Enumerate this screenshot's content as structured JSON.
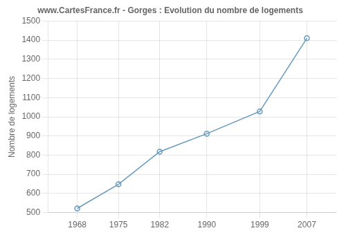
{
  "chart_data": {
    "type": "line",
    "title": "www.CartesFrance.fr - Gorges : Evolution du nombre de logements",
    "ylabel": "Nombre de logements",
    "x": [
      1968,
      1975,
      1982,
      1990,
      1999,
      2007
    ],
    "values": [
      522,
      648,
      818,
      912,
      1028,
      1410
    ],
    "color": "#6699BB",
    "marker": "circle",
    "xlim": [
      1963,
      2012
    ],
    "xticks": [
      1968,
      1975,
      1982,
      1990,
      1999,
      2007
    ],
    "ylim": [
      500,
      1500
    ],
    "yticks": [
      500,
      600,
      700,
      800,
      900,
      1000,
      1100,
      1200,
      1300,
      1400,
      1500
    ],
    "grid": true
  }
}
